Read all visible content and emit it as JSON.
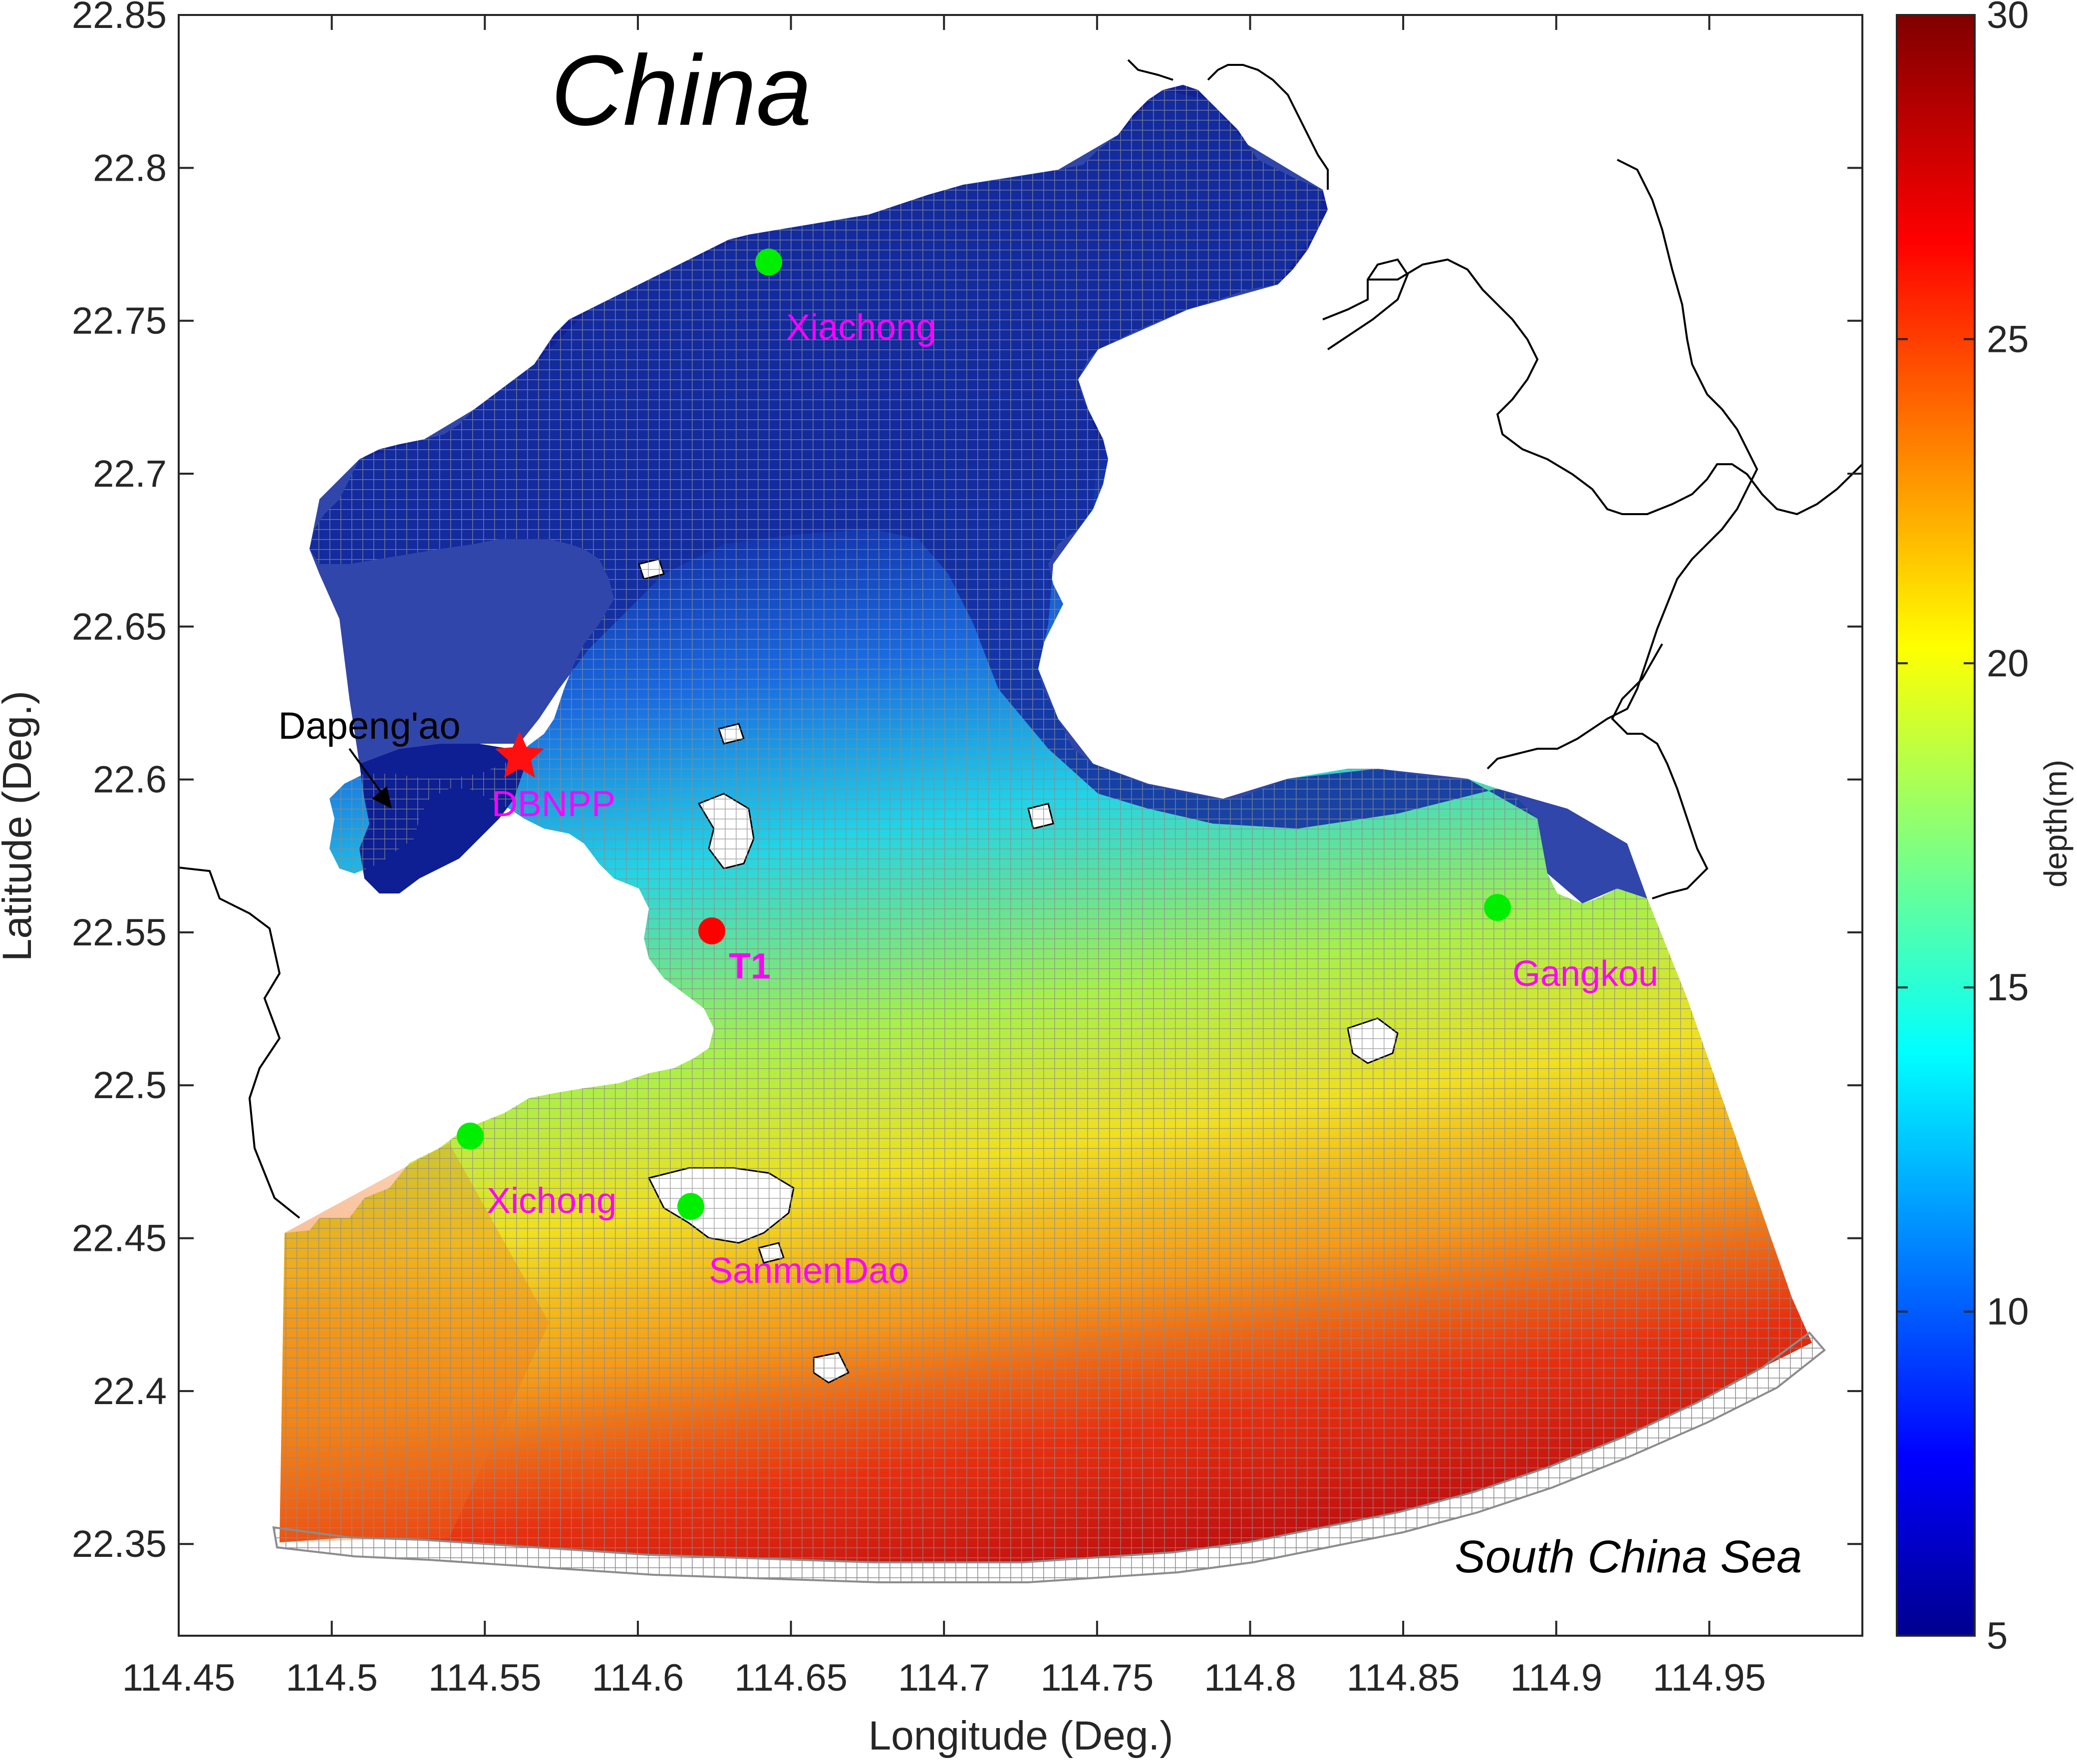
{
  "map": {
    "title_region": "China",
    "sea_label": "South China Sea",
    "xlabel": "Longitude (Deg.)",
    "ylabel": "Latitude (Deg.)",
    "xlim": [
      114.45,
      115.0
    ],
    "ylim": [
      22.32,
      22.85
    ],
    "xticks": [
      "114.45",
      "114.5",
      "114.55",
      "114.6",
      "114.65",
      "114.7",
      "114.75",
      "114.8",
      "114.85",
      "114.9",
      "114.95"
    ],
    "xtick_values": [
      114.45,
      114.5,
      114.55,
      114.6,
      114.65,
      114.7,
      114.75,
      114.8,
      114.85,
      114.9,
      114.95
    ],
    "yticks": [
      "22.35",
      "22.4",
      "22.45",
      "22.5",
      "22.55",
      "22.6",
      "22.65",
      "22.7",
      "22.75",
      "22.8",
      "22.85"
    ],
    "ytick_values": [
      22.35,
      22.4,
      22.45,
      22.5,
      22.55,
      22.6,
      22.65,
      22.7,
      22.75,
      22.8,
      22.85
    ]
  },
  "colorbar": {
    "label": "depth(m)",
    "range": [
      5,
      30
    ],
    "ticks": [
      "5",
      "10",
      "15",
      "20",
      "25",
      "30"
    ],
    "tick_values": [
      5,
      10,
      15,
      20,
      25,
      30
    ],
    "colormap": "jet"
  },
  "stations": [
    {
      "name": "Xiachong",
      "lon": 114.641,
      "lat": 22.768,
      "marker": "green-dot",
      "color": "#00ee00"
    },
    {
      "name": "Gangkou",
      "lon": 114.88,
      "lat": 22.557,
      "marker": "green-dot",
      "color": "#00ee00"
    },
    {
      "name": "Xichong",
      "lon": 114.545,
      "lat": 22.483,
      "marker": "green-dot",
      "color": "#00ee00"
    },
    {
      "name": "SanmenDao",
      "lon": 114.617,
      "lat": 22.46,
      "marker": "green-dot",
      "color": "#00ee00"
    },
    {
      "name": "T1",
      "lon": 114.625,
      "lat": 22.55,
      "marker": "red-dot",
      "color": "#ff0000"
    },
    {
      "name": "DBNPP",
      "lon": 114.562,
      "lat": 22.608,
      "marker": "red-star",
      "color": "#ff0000"
    }
  ],
  "annotations": {
    "dapengao": "Dapeng'ao"
  },
  "colors": {
    "label_magenta": "#ff00ff",
    "grid_line": "#808080",
    "coastline": "#000000"
  }
}
